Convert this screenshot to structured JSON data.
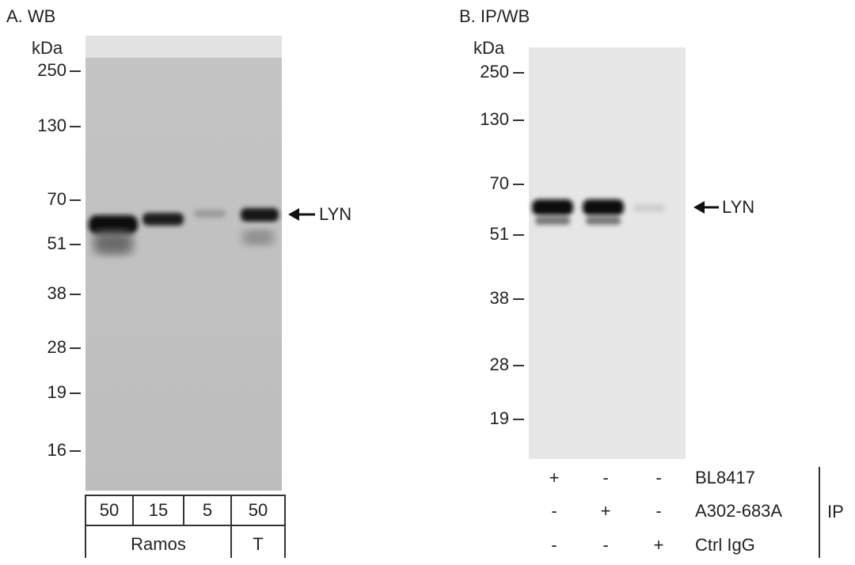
{
  "panel_a": {
    "title": "A. WB",
    "unit": "kDa",
    "markers": [
      "250",
      "130",
      "70",
      "51",
      "38",
      "28",
      "19",
      "16"
    ],
    "target": "LYN",
    "lane_loads": [
      "50",
      "15",
      "5",
      "50"
    ],
    "cell_lines": [
      "Ramos",
      "T"
    ]
  },
  "panel_b": {
    "title": "B. IP/WB",
    "unit": "kDa",
    "markers": [
      "250",
      "130",
      "70",
      "51",
      "38",
      "28",
      "19"
    ],
    "target": "LYN",
    "ip_rows": [
      {
        "label": "BL8417",
        "signs": [
          "+",
          "-",
          "-"
        ]
      },
      {
        "label": "A302-683A",
        "signs": [
          "-",
          "+",
          "-"
        ]
      },
      {
        "label": "Ctrl IgG",
        "signs": [
          "-",
          "-",
          "+"
        ]
      }
    ],
    "ip_label": "IP"
  }
}
